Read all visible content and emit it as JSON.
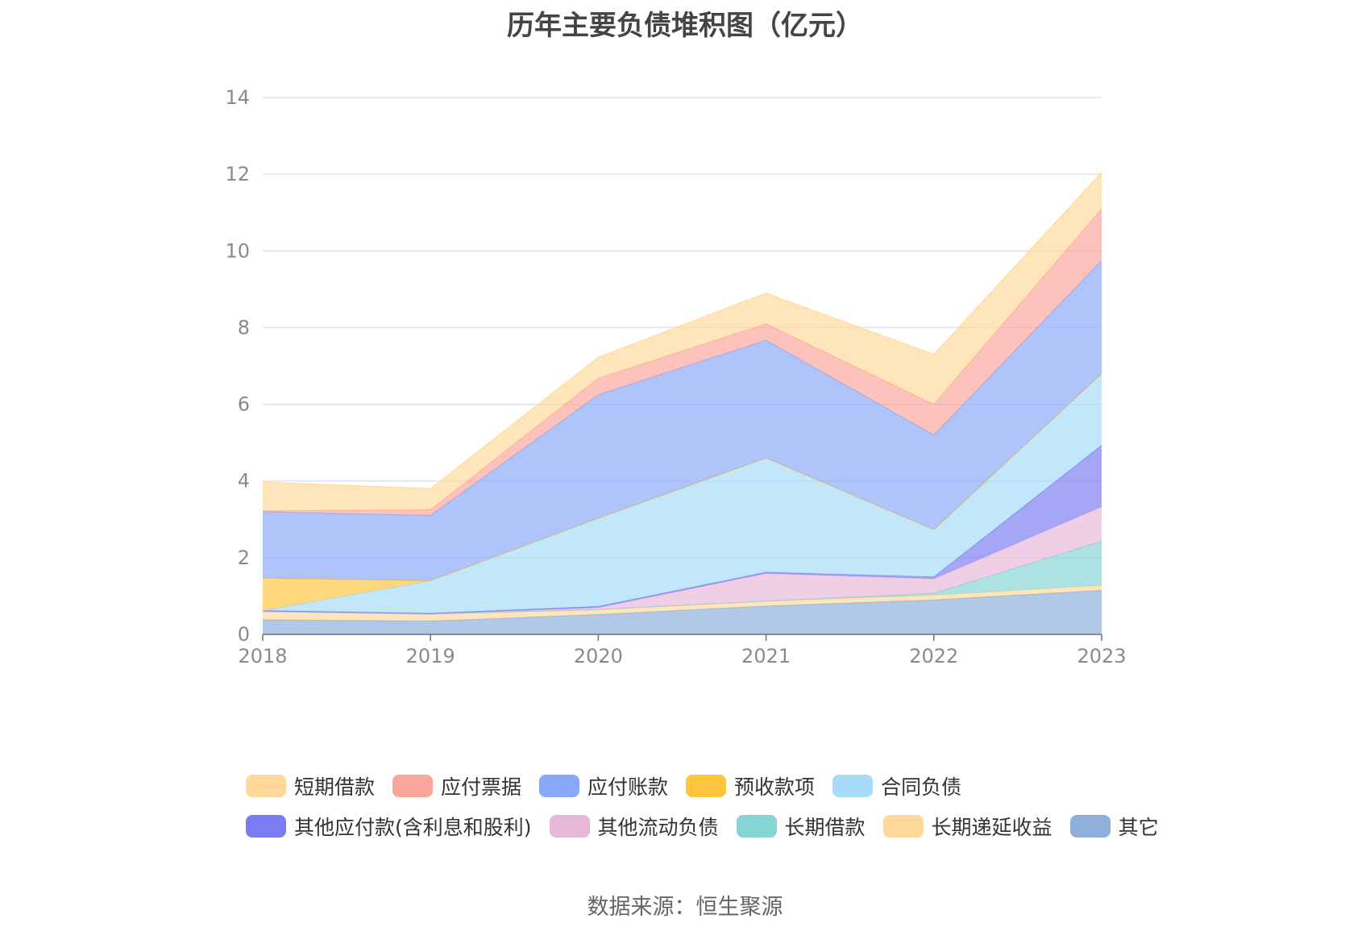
{
  "chart_data": {
    "type": "area",
    "stacked": true,
    "title": "历年主要负债堆积图（亿元）",
    "x": [
      "2018",
      "2019",
      "2020",
      "2021",
      "2022",
      "2023"
    ],
    "ylim": [
      0,
      14
    ],
    "yticks": [
      0,
      2,
      4,
      6,
      8,
      10,
      12,
      14
    ],
    "grid": true,
    "legend_position": "bottom",
    "series": [
      {
        "name": "其它",
        "color": "#8eaedc",
        "values": [
          0.38,
          0.35,
          0.52,
          0.74,
          0.9,
          1.15
        ]
      },
      {
        "name": "长期递延收益",
        "color": "#ffd89a",
        "values": [
          0.22,
          0.18,
          0.13,
          0.13,
          0.12,
          0.13
        ]
      },
      {
        "name": "长期借款",
        "color": "#86d4d4",
        "values": [
          0,
          0,
          0,
          0,
          0.05,
          1.15
        ]
      },
      {
        "name": "其他流动负债",
        "color": "#e6b8d8",
        "values": [
          0,
          0,
          0.05,
          0.72,
          0.38,
          0.9
        ]
      },
      {
        "name": "其他应付款(含利息和股利)",
        "color": "#7a7cf2",
        "values": [
          0.02,
          0.02,
          0.03,
          0.03,
          0.05,
          1.6
        ]
      },
      {
        "name": "合同负债",
        "color": "#a6dcf8",
        "values": [
          0,
          0.85,
          2.3,
          2.98,
          1.23,
          1.87
        ]
      },
      {
        "name": "预收款项",
        "color": "#ffc53d",
        "values": [
          0.85,
          0,
          0,
          0,
          0,
          0
        ]
      },
      {
        "name": "应付账款",
        "color": "#8aa8fb",
        "values": [
          1.73,
          1.7,
          3.22,
          3.07,
          2.47,
          2.95
        ]
      },
      {
        "name": "应付票据",
        "color": "#fba59b",
        "values": [
          0.02,
          0.15,
          0.43,
          0.43,
          0.8,
          1.35
        ]
      },
      {
        "name": "短期借款",
        "color": "#ffd89a",
        "values": [
          0.75,
          0.55,
          0.55,
          0.8,
          1.3,
          0.95
        ]
      }
    ]
  },
  "legend": [
    {
      "label": "短期借款",
      "color": "#ffd89a"
    },
    {
      "label": "应付票据",
      "color": "#fba59b"
    },
    {
      "label": "应付账款",
      "color": "#8aa8fb"
    },
    {
      "label": "预收款项",
      "color": "#ffc53d"
    },
    {
      "label": "合同负债",
      "color": "#a6dcf8"
    },
    {
      "label": "其他应付款(含利息和股利)",
      "color": "#7a7cf2"
    },
    {
      "label": "其他流动负债",
      "color": "#e6b8d8"
    },
    {
      "label": "长期借款",
      "color": "#86d4d4"
    },
    {
      "label": "长期递延收益",
      "color": "#ffd89a"
    },
    {
      "label": "其它",
      "color": "#8eaedc"
    }
  ],
  "source": "数据来源：恒生聚源"
}
